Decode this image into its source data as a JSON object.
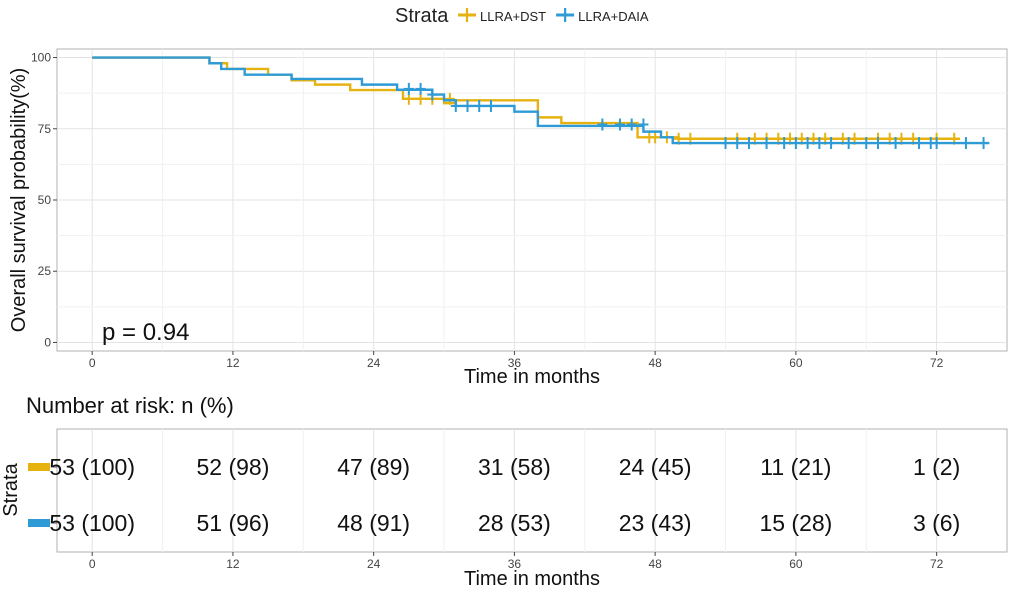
{
  "chart_data": {
    "type": "line",
    "subtype": "kaplan-meier",
    "legend": {
      "title": "Strata",
      "placement": "top-center",
      "entries": [
        {
          "label": "LLRA+DST",
          "color": "#E6B210"
        },
        {
          "label": "LLRA+DAIA",
          "color": "#2E9BD6"
        }
      ]
    },
    "xlabel": "Time in months",
    "ylabel": "Overall survival probability(%)",
    "xlim": [
      -3,
      78
    ],
    "ylim": [
      -3,
      103
    ],
    "xticks": [
      0,
      12,
      24,
      36,
      48,
      60,
      72
    ],
    "yticks": [
      0,
      25,
      50,
      75,
      100
    ],
    "grid": true,
    "annotation": "p = 0.94",
    "series": [
      {
        "name": "LLRA+DST",
        "color": "#E6B210",
        "steps": [
          [
            0,
            100
          ],
          [
            10,
            98
          ],
          [
            11.5,
            96
          ],
          [
            15,
            94
          ],
          [
            17,
            92
          ],
          [
            19,
            90.5
          ],
          [
            22,
            88.6
          ],
          [
            26.5,
            85.5
          ],
          [
            30,
            84
          ],
          [
            31,
            85
          ],
          [
            38,
            79
          ],
          [
            40,
            77
          ],
          [
            46.5,
            72
          ],
          [
            50,
            71.5
          ],
          [
            74,
            71.5
          ]
        ],
        "censored": [
          [
            27,
            85.5
          ],
          [
            28,
            85.5
          ],
          [
            29,
            85.5
          ],
          [
            30.5,
            85.5
          ],
          [
            47.5,
            72
          ],
          [
            48,
            72
          ],
          [
            49,
            72
          ],
          [
            50,
            71.5
          ],
          [
            51,
            71.5
          ],
          [
            55,
            71.5
          ],
          [
            56.5,
            71.5
          ],
          [
            57.5,
            71.5
          ],
          [
            58.5,
            71.5
          ],
          [
            59.5,
            71.5
          ],
          [
            60.5,
            71.5
          ],
          [
            61.5,
            71.5
          ],
          [
            62.5,
            71.5
          ],
          [
            64,
            71.5
          ],
          [
            65,
            71.5
          ],
          [
            67,
            71.5
          ],
          [
            68,
            71.5
          ],
          [
            69,
            71.5
          ],
          [
            70,
            71.5
          ],
          [
            72,
            71.5
          ],
          [
            73.5,
            71.5
          ]
        ]
      },
      {
        "name": "LLRA+DAIA",
        "color": "#2E9BD6",
        "steps": [
          [
            0,
            100
          ],
          [
            10,
            98
          ],
          [
            11,
            96
          ],
          [
            13,
            94
          ],
          [
            17,
            92.5
          ],
          [
            23,
            90.5
          ],
          [
            26,
            88.7
          ],
          [
            29,
            87
          ],
          [
            30,
            85
          ],
          [
            31,
            83
          ],
          [
            36,
            81
          ],
          [
            38,
            76
          ],
          [
            47,
            74
          ],
          [
            48.5,
            72
          ],
          [
            49.5,
            70
          ],
          [
            76.5,
            70
          ]
        ],
        "censored": [
          [
            27,
            89
          ],
          [
            28,
            89
          ],
          [
            29,
            87
          ],
          [
            31,
            83
          ],
          [
            32,
            83
          ],
          [
            33,
            83
          ],
          [
            34,
            83
          ],
          [
            43.5,
            76.5
          ],
          [
            45,
            76.5
          ],
          [
            46,
            76.5
          ],
          [
            47,
            76.5
          ],
          [
            54,
            70
          ],
          [
            55,
            70
          ],
          [
            56,
            70
          ],
          [
            57.5,
            70
          ],
          [
            59,
            70
          ],
          [
            60,
            70
          ],
          [
            61,
            70
          ],
          [
            62,
            70
          ],
          [
            63,
            70
          ],
          [
            64.5,
            70
          ],
          [
            66,
            70
          ],
          [
            67,
            70
          ],
          [
            68.5,
            70
          ],
          [
            70.5,
            70
          ],
          [
            71.5,
            70
          ],
          [
            72,
            70
          ],
          [
            74.5,
            70
          ],
          [
            76,
            70
          ]
        ]
      }
    ],
    "risk_table": {
      "title": "Number at risk: n (%)",
      "ylabel": "Strata",
      "xlabel": "Time in months",
      "times": [
        0,
        12,
        24,
        36,
        48,
        60,
        72
      ],
      "rows": [
        {
          "name": "LLRA+DST",
          "color": "#E6B210",
          "values": [
            "53 (100)",
            "52 (98)",
            "47 (89)",
            "31 (58)",
            "24 (45)",
            "11 (21)",
            "1 (2)"
          ]
        },
        {
          "name": "LLRA+DAIA",
          "color": "#2E9BD6",
          "values": [
            "53 (100)",
            "51 (96)",
            "48 (91)",
            "28 (53)",
            "23 (43)",
            "15 (28)",
            "3 (6)"
          ]
        }
      ]
    }
  }
}
